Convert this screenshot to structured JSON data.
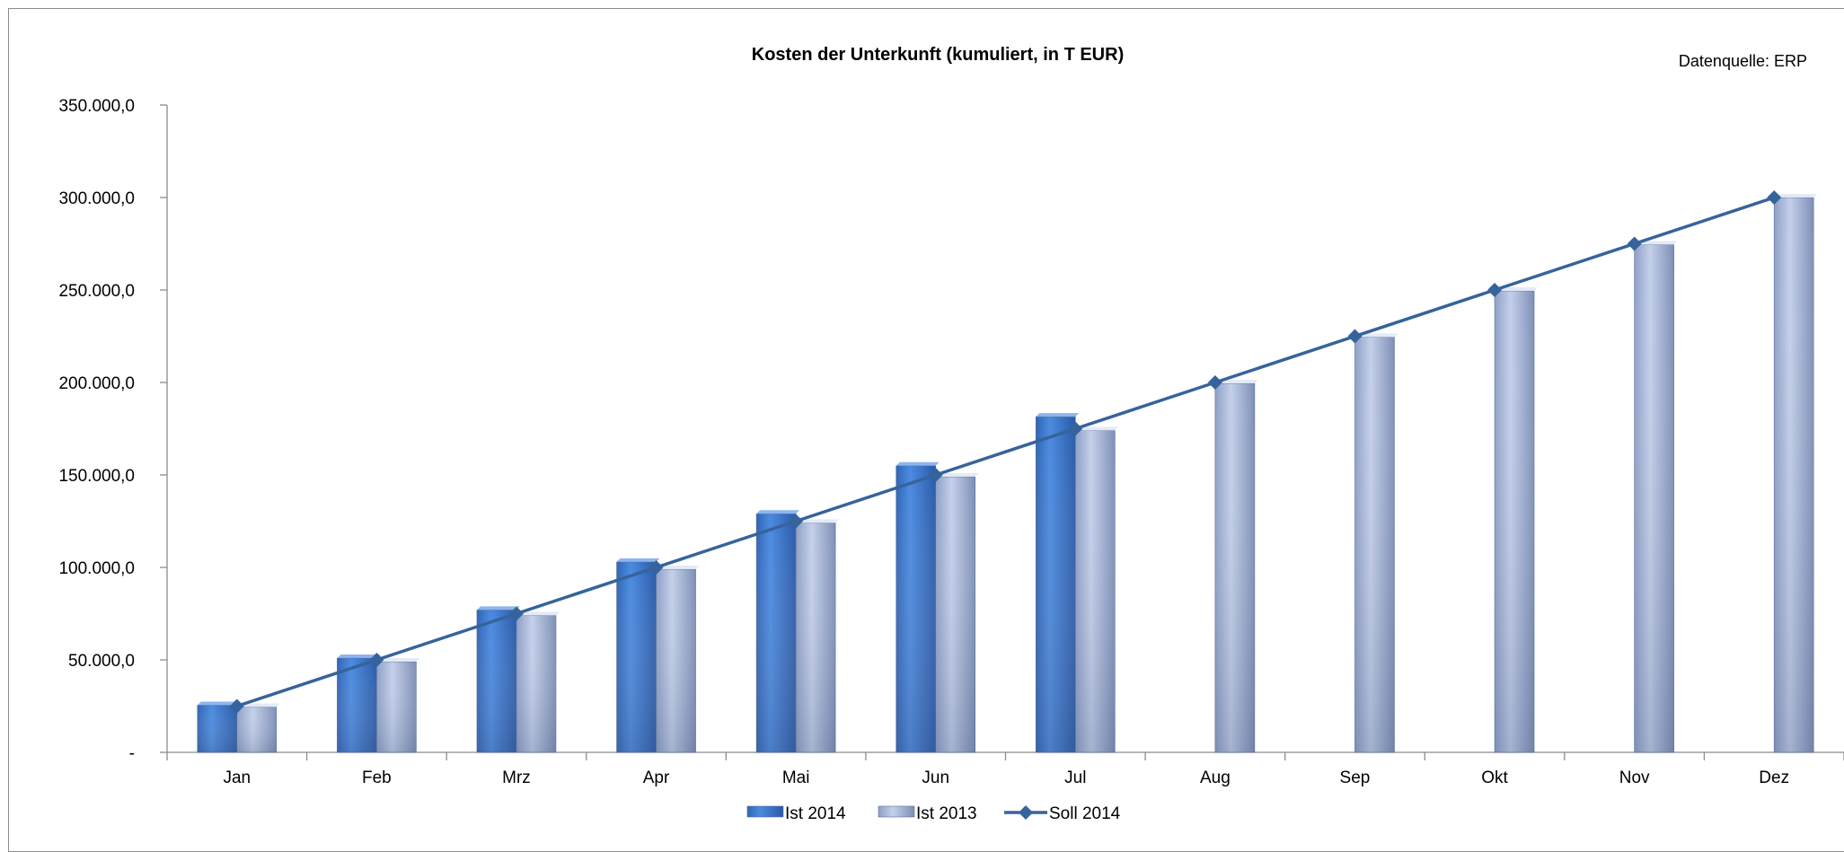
{
  "source_note": "Datenquelle: ERP",
  "chart_data": {
    "type": "bar",
    "title": "Kosten der Unterkunft (kumuliert, in T EUR)",
    "xlabel": "",
    "ylabel": "",
    "ylim": [
      0,
      350000
    ],
    "y_ticks": [
      {
        "value": 0,
        "label": "-"
      },
      {
        "value": 50000,
        "label": "50.000,0"
      },
      {
        "value": 100000,
        "label": "100.000,0"
      },
      {
        "value": 150000,
        "label": "150.000,0"
      },
      {
        "value": 200000,
        "label": "200.000,0"
      },
      {
        "value": 250000,
        "label": "250.000,0"
      },
      {
        "value": 300000,
        "label": "300.000,0"
      },
      {
        "value": 350000,
        "label": "350.000,0"
      }
    ],
    "categories": [
      "Jan",
      "Feb",
      "Mrz",
      "Apr",
      "Mai",
      "Jun",
      "Jul",
      "Aug",
      "Sep",
      "Okt",
      "Nov",
      "Dez"
    ],
    "series": [
      {
        "name": "Ist 2014",
        "kind": "bar",
        "color": "#3c78c8",
        "values": [
          25500,
          51000,
          77000,
          103000,
          129000,
          155000,
          181500,
          null,
          null,
          null,
          null,
          null
        ]
      },
      {
        "name": "Ist 2013",
        "kind": "bar",
        "color": "#a9b9d9",
        "values": [
          24500,
          49000,
          74000,
          99000,
          124000,
          149000,
          174000,
          199500,
          224500,
          249500,
          274500,
          300000
        ]
      },
      {
        "name": "Soll 2014",
        "kind": "line",
        "color": "#36639c",
        "values": [
          25000,
          50000,
          75000,
          100000,
          125000,
          150000,
          175000,
          200000,
          225000,
          250000,
          275000,
          300000
        ]
      }
    ],
    "legend_position": "bottom",
    "grid": false
  }
}
